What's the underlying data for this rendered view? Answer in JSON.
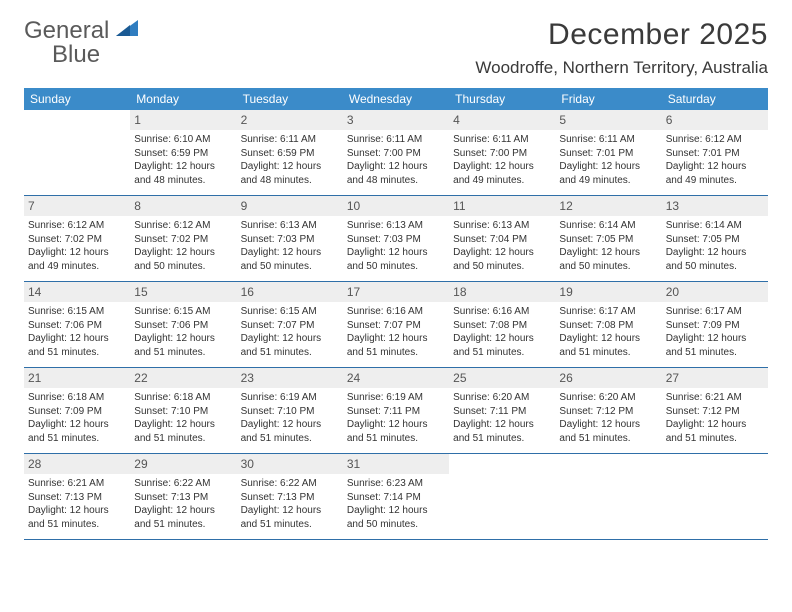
{
  "logo": {
    "text_general": "General",
    "text_blue": "Blue"
  },
  "title": "December 2025",
  "location": "Woodroffe, Northern Territory, Australia",
  "dow": [
    "Sunday",
    "Monday",
    "Tuesday",
    "Wednesday",
    "Thursday",
    "Friday",
    "Saturday"
  ],
  "colors": {
    "header_bg": "#3b8bc9",
    "row_border": "#2f6fa8",
    "daynum_bg": "#eeeeee",
    "logo_blue": "#2f7dc0",
    "text": "#333333"
  },
  "weeks": [
    [
      null,
      {
        "n": "1",
        "sr": "6:10 AM",
        "ss": "6:59 PM",
        "d1": "12 hours",
        "d2": "48 minutes."
      },
      {
        "n": "2",
        "sr": "6:11 AM",
        "ss": "6:59 PM",
        "d1": "12 hours",
        "d2": "48 minutes."
      },
      {
        "n": "3",
        "sr": "6:11 AM",
        "ss": "7:00 PM",
        "d1": "12 hours",
        "d2": "48 minutes."
      },
      {
        "n": "4",
        "sr": "6:11 AM",
        "ss": "7:00 PM",
        "d1": "12 hours",
        "d2": "49 minutes."
      },
      {
        "n": "5",
        "sr": "6:11 AM",
        "ss": "7:01 PM",
        "d1": "12 hours",
        "d2": "49 minutes."
      },
      {
        "n": "6",
        "sr": "6:12 AM",
        "ss": "7:01 PM",
        "d1": "12 hours",
        "d2": "49 minutes."
      }
    ],
    [
      {
        "n": "7",
        "sr": "6:12 AM",
        "ss": "7:02 PM",
        "d1": "12 hours",
        "d2": "49 minutes."
      },
      {
        "n": "8",
        "sr": "6:12 AM",
        "ss": "7:02 PM",
        "d1": "12 hours",
        "d2": "50 minutes."
      },
      {
        "n": "9",
        "sr": "6:13 AM",
        "ss": "7:03 PM",
        "d1": "12 hours",
        "d2": "50 minutes."
      },
      {
        "n": "10",
        "sr": "6:13 AM",
        "ss": "7:03 PM",
        "d1": "12 hours",
        "d2": "50 minutes."
      },
      {
        "n": "11",
        "sr": "6:13 AM",
        "ss": "7:04 PM",
        "d1": "12 hours",
        "d2": "50 minutes."
      },
      {
        "n": "12",
        "sr": "6:14 AM",
        "ss": "7:05 PM",
        "d1": "12 hours",
        "d2": "50 minutes."
      },
      {
        "n": "13",
        "sr": "6:14 AM",
        "ss": "7:05 PM",
        "d1": "12 hours",
        "d2": "50 minutes."
      }
    ],
    [
      {
        "n": "14",
        "sr": "6:15 AM",
        "ss": "7:06 PM",
        "d1": "12 hours",
        "d2": "51 minutes."
      },
      {
        "n": "15",
        "sr": "6:15 AM",
        "ss": "7:06 PM",
        "d1": "12 hours",
        "d2": "51 minutes."
      },
      {
        "n": "16",
        "sr": "6:15 AM",
        "ss": "7:07 PM",
        "d1": "12 hours",
        "d2": "51 minutes."
      },
      {
        "n": "17",
        "sr": "6:16 AM",
        "ss": "7:07 PM",
        "d1": "12 hours",
        "d2": "51 minutes."
      },
      {
        "n": "18",
        "sr": "6:16 AM",
        "ss": "7:08 PM",
        "d1": "12 hours",
        "d2": "51 minutes."
      },
      {
        "n": "19",
        "sr": "6:17 AM",
        "ss": "7:08 PM",
        "d1": "12 hours",
        "d2": "51 minutes."
      },
      {
        "n": "20",
        "sr": "6:17 AM",
        "ss": "7:09 PM",
        "d1": "12 hours",
        "d2": "51 minutes."
      }
    ],
    [
      {
        "n": "21",
        "sr": "6:18 AM",
        "ss": "7:09 PM",
        "d1": "12 hours",
        "d2": "51 minutes."
      },
      {
        "n": "22",
        "sr": "6:18 AM",
        "ss": "7:10 PM",
        "d1": "12 hours",
        "d2": "51 minutes."
      },
      {
        "n": "23",
        "sr": "6:19 AM",
        "ss": "7:10 PM",
        "d1": "12 hours",
        "d2": "51 minutes."
      },
      {
        "n": "24",
        "sr": "6:19 AM",
        "ss": "7:11 PM",
        "d1": "12 hours",
        "d2": "51 minutes."
      },
      {
        "n": "25",
        "sr": "6:20 AM",
        "ss": "7:11 PM",
        "d1": "12 hours",
        "d2": "51 minutes."
      },
      {
        "n": "26",
        "sr": "6:20 AM",
        "ss": "7:12 PM",
        "d1": "12 hours",
        "d2": "51 minutes."
      },
      {
        "n": "27",
        "sr": "6:21 AM",
        "ss": "7:12 PM",
        "d1": "12 hours",
        "d2": "51 minutes."
      }
    ],
    [
      {
        "n": "28",
        "sr": "6:21 AM",
        "ss": "7:13 PM",
        "d1": "12 hours",
        "d2": "51 minutes."
      },
      {
        "n": "29",
        "sr": "6:22 AM",
        "ss": "7:13 PM",
        "d1": "12 hours",
        "d2": "51 minutes."
      },
      {
        "n": "30",
        "sr": "6:22 AM",
        "ss": "7:13 PM",
        "d1": "12 hours",
        "d2": "51 minutes."
      },
      {
        "n": "31",
        "sr": "6:23 AM",
        "ss": "7:14 PM",
        "d1": "12 hours",
        "d2": "50 minutes."
      },
      null,
      null,
      null
    ]
  ],
  "labels": {
    "sunrise": "Sunrise:",
    "sunset": "Sunset:",
    "daylight": "Daylight:",
    "and": "and"
  }
}
